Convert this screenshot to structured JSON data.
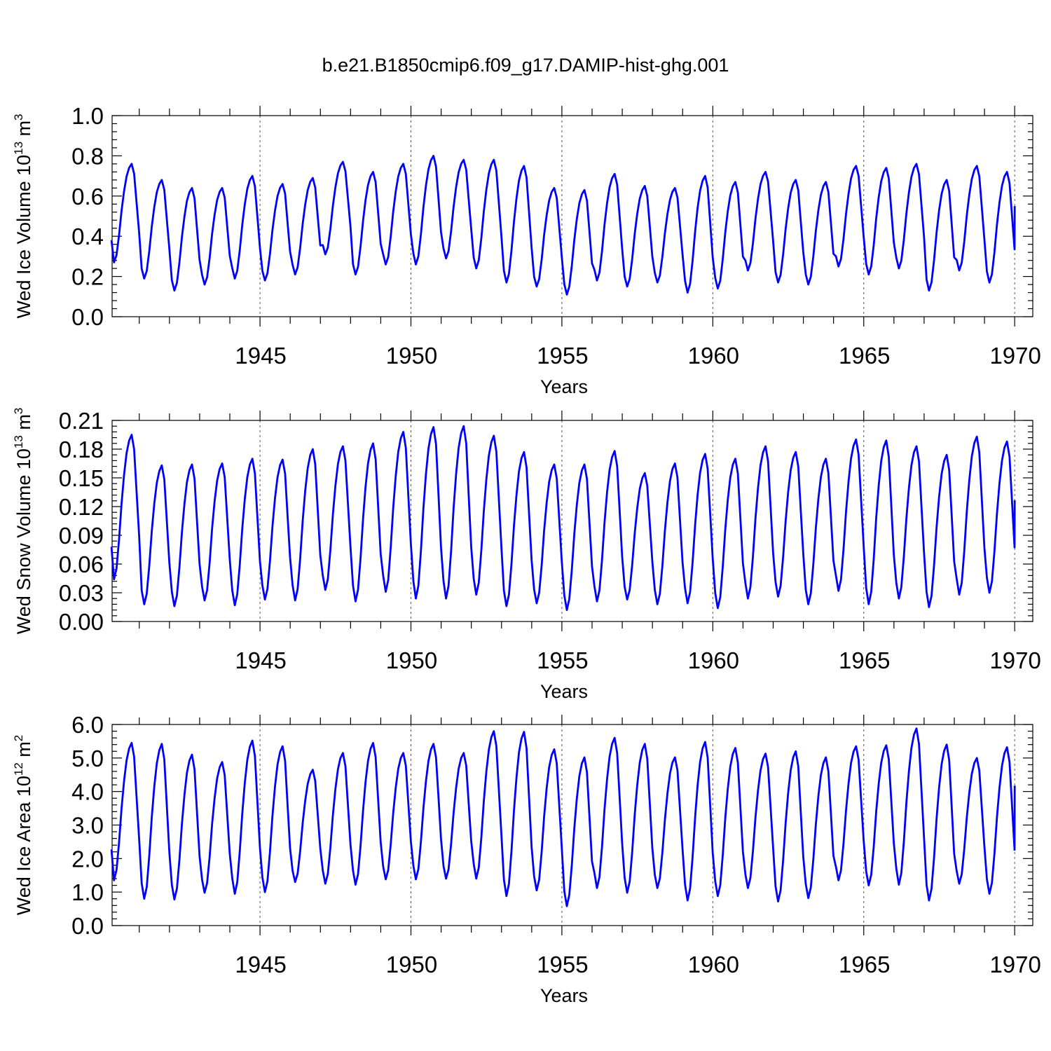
{
  "title": "b.e21.B1850cmip6.f09_g17.DAMIP-hist-ghg.001",
  "colors": {
    "line": "#0000ff",
    "axis": "#000000"
  },
  "chart_data": [
    {
      "type": "line",
      "id": "ice-volume",
      "ylabel": {
        "main": "Wed Ice Volume 10",
        "exp": "13",
        "unit": " m",
        "unit_exp": "3"
      },
      "xlabel": "Years",
      "xlim": [
        1940.1,
        1970.6
      ],
      "ylim": [
        0.0,
        1.0
      ],
      "yticks": [
        0.0,
        0.2,
        0.4,
        0.6,
        0.8,
        1.0
      ],
      "ytick_labels": [
        "0.0",
        "0.2",
        "0.4",
        "0.6",
        "0.8",
        "1.0"
      ],
      "xticks": [
        1945,
        1950,
        1955,
        1960,
        1965,
        1970
      ],
      "xtick_labels": [
        "1945",
        "1950",
        "1955",
        "1960",
        "1965",
        "1970"
      ],
      "start_year": 1940.08,
      "mean": 0.44,
      "max_by_year": [
        0.76,
        0.68,
        0.64,
        0.64,
        0.7,
        0.66,
        0.69,
        0.77,
        0.72,
        0.76,
        0.8,
        0.78,
        0.78,
        0.75,
        0.64,
        0.63,
        0.71,
        0.65,
        0.64,
        0.7,
        0.67,
        0.72,
        0.68,
        0.67,
        0.75,
        0.74,
        0.76,
        0.68,
        0.75,
        0.72
      ],
      "min_by_year": [
        0.27,
        0.19,
        0.13,
        0.16,
        0.19,
        0.18,
        0.21,
        0.31,
        0.21,
        0.26,
        0.26,
        0.29,
        0.24,
        0.17,
        0.15,
        0.11,
        0.18,
        0.15,
        0.17,
        0.12,
        0.14,
        0.23,
        0.17,
        0.16,
        0.25,
        0.21,
        0.24,
        0.13,
        0.23,
        0.17
      ]
    },
    {
      "type": "line",
      "id": "snow-volume",
      "ylabel": {
        "main": "Wed Snow Volume 10",
        "exp": "13",
        "unit": " m",
        "unit_exp": "3"
      },
      "xlabel": "Years",
      "xlim": [
        1940.1,
        1970.6
      ],
      "ylim": [
        0.0,
        0.21
      ],
      "yticks": [
        0.0,
        0.03,
        0.06,
        0.09,
        0.12,
        0.15,
        0.18,
        0.21
      ],
      "ytick_labels": [
        "0.00",
        "0.03",
        "0.06",
        "0.09",
        "0.12",
        "0.15",
        "0.18",
        "0.21"
      ],
      "xticks": [
        1945,
        1950,
        1955,
        1960,
        1965,
        1970
      ],
      "xtick_labels": [
        "1945",
        "1950",
        "1955",
        "1960",
        "1965",
        "1970"
      ],
      "start_year": 1940.08,
      "mean": 0.095,
      "max_by_year": [
        0.195,
        0.163,
        0.164,
        0.165,
        0.17,
        0.169,
        0.18,
        0.183,
        0.186,
        0.198,
        0.203,
        0.204,
        0.194,
        0.177,
        0.164,
        0.164,
        0.178,
        0.155,
        0.165,
        0.175,
        0.17,
        0.183,
        0.177,
        0.17,
        0.19,
        0.189,
        0.183,
        0.174,
        0.193,
        0.188
      ],
      "min_by_year": [
        0.044,
        0.018,
        0.016,
        0.022,
        0.017,
        0.023,
        0.022,
        0.033,
        0.021,
        0.031,
        0.024,
        0.024,
        0.028,
        0.016,
        0.019,
        0.012,
        0.021,
        0.023,
        0.018,
        0.019,
        0.014,
        0.024,
        0.026,
        0.018,
        0.032,
        0.018,
        0.024,
        0.015,
        0.028,
        0.03
      ]
    },
    {
      "type": "line",
      "id": "ice-area",
      "ylabel": {
        "main": "Wed Ice Area 10",
        "exp": "12",
        "unit": " m",
        "unit_exp": "2"
      },
      "xlabel": "Years",
      "xlim": [
        1940.1,
        1970.6
      ],
      "ylim": [
        0.0,
        6.0
      ],
      "yticks": [
        0.0,
        1.0,
        2.0,
        3.0,
        4.0,
        5.0,
        6.0
      ],
      "ytick_labels": [
        "0.0",
        "1.0",
        "2.0",
        "3.0",
        "4.0",
        "5.0",
        "6.0"
      ],
      "xticks": [
        1945,
        1950,
        1955,
        1960,
        1965,
        1970
      ],
      "xtick_labels": [
        "1945",
        "1950",
        "1955",
        "1960",
        "1965",
        "1970"
      ],
      "start_year": 1940.08,
      "mean": 3.3,
      "max_by_year": [
        5.45,
        5.42,
        5.1,
        4.88,
        5.52,
        5.35,
        4.65,
        5.15,
        5.45,
        5.15,
        5.42,
        5.15,
        5.8,
        5.78,
        5.26,
        5.02,
        5.6,
        5.42,
        5.02,
        5.48,
        5.3,
        5.13,
        5.2,
        5.02,
        5.35,
        5.38,
        5.88,
        5.4,
        5.0,
        5.32
      ],
      "min_by_year": [
        1.35,
        0.8,
        0.78,
        0.98,
        0.95,
        1.0,
        1.3,
        1.25,
        1.22,
        1.38,
        1.38,
        1.4,
        1.4,
        0.88,
        1.05,
        0.58,
        1.12,
        0.98,
        1.12,
        0.75,
        0.88,
        1.12,
        0.72,
        0.82,
        1.35,
        1.2,
        1.22,
        0.75,
        1.25,
        0.95
      ]
    }
  ]
}
